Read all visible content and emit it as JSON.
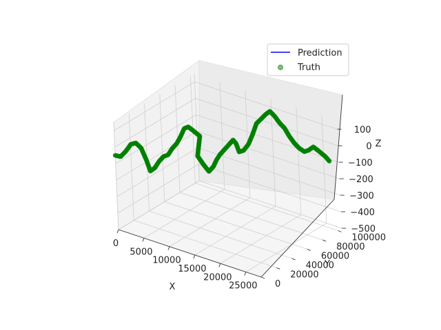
{
  "chart_data": {
    "type": "scatter",
    "projection": "3d",
    "xlabel": "X",
    "ylabel": "Y",
    "zlabel": "Z",
    "xlim": [
      0,
      28000
    ],
    "ylim": [
      0,
      105000
    ],
    "zlim": [
      -500,
      150
    ],
    "x_ticks": [
      "0",
      "5000",
      "10000",
      "15000",
      "20000",
      "25000"
    ],
    "x_tick_values": [
      0,
      5000,
      10000,
      15000,
      20000,
      25000
    ],
    "y_ticks": [
      "0",
      "20000",
      "40000",
      "60000",
      "80000",
      "100000"
    ],
    "y_tick_values": [
      0,
      20000,
      40000,
      60000,
      80000,
      100000
    ],
    "z_ticks": [
      "100",
      "0",
      "−100",
      "−200",
      "−300",
      "−400",
      "−500"
    ],
    "z_tick_values": [
      100,
      0,
      -100,
      -200,
      -300,
      -400,
      -500
    ],
    "grid": true,
    "legend": {
      "position": "upper-right",
      "entries": [
        {
          "label": "Prediction",
          "marker": "line",
          "color": "#0000ff"
        },
        {
          "label": "Truth",
          "marker": "dot",
          "color": "#008000"
        }
      ]
    },
    "series": [
      {
        "name": "Truth",
        "color": "#008000",
        "points": [
          [
            0,
            0,
            -50
          ],
          [
            600,
            3000,
            -60
          ],
          [
            1200,
            6000,
            -30
          ],
          [
            1800,
            9000,
            10
          ],
          [
            2500,
            11000,
            20
          ],
          [
            3200,
            13000,
            -10
          ],
          [
            3800,
            15000,
            -80
          ],
          [
            4200,
            17000,
            -150
          ],
          [
            4800,
            19000,
            -130
          ],
          [
            5400,
            21000,
            -90
          ],
          [
            6000,
            23000,
            -60
          ],
          [
            6600,
            25000,
            -50
          ],
          [
            7200,
            27000,
            -10
          ],
          [
            7800,
            29000,
            20
          ],
          [
            8300,
            31000,
            60
          ],
          [
            8800,
            33000,
            110
          ],
          [
            9300,
            35000,
            120
          ],
          [
            9800,
            37000,
            100
          ],
          [
            10200,
            39000,
            80
          ],
          [
            10600,
            41000,
            60
          ],
          [
            9500,
            44000,
            -80
          ],
          [
            10300,
            46000,
            -130
          ],
          [
            11000,
            48000,
            -170
          ],
          [
            11600,
            50000,
            -140
          ],
          [
            12000,
            52000,
            -100
          ],
          [
            12400,
            54000,
            -70
          ],
          [
            13000,
            56000,
            -40
          ],
          [
            13600,
            58000,
            -10
          ],
          [
            14200,
            60000,
            20
          ],
          [
            14600,
            61000,
            0
          ],
          [
            15000,
            62000,
            -50
          ],
          [
            15600,
            64000,
            -40
          ],
          [
            16300,
            66000,
            0
          ],
          [
            17000,
            67000,
            60
          ],
          [
            17600,
            69000,
            130
          ],
          [
            18300,
            71000,
            160
          ],
          [
            19000,
            72000,
            190
          ],
          [
            19600,
            74000,
            210
          ],
          [
            20200,
            76000,
            180
          ],
          [
            20800,
            78000,
            140
          ],
          [
            21400,
            80000,
            110
          ],
          [
            22000,
            82000,
            60
          ],
          [
            22600,
            84000,
            20
          ],
          [
            23200,
            86000,
            -10
          ],
          [
            23900,
            88000,
            -30
          ],
          [
            24500,
            90000,
            -20
          ],
          [
            25100,
            92000,
            0
          ],
          [
            25600,
            94000,
            -20
          ],
          [
            26000,
            96000,
            -40
          ],
          [
            26400,
            98000,
            -60
          ],
          [
            26900,
            100000,
            -90
          ]
        ]
      }
    ]
  }
}
